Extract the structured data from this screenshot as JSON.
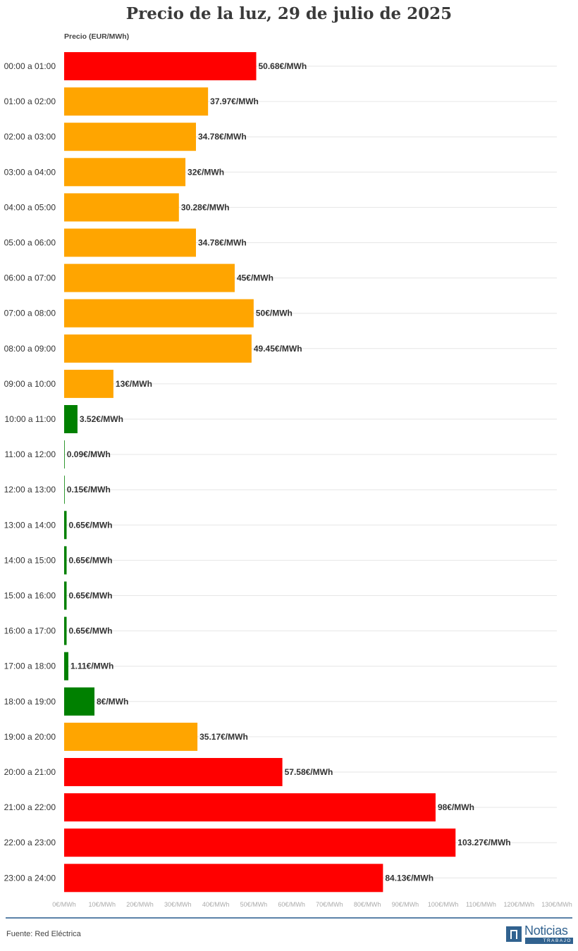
{
  "chart_data": {
    "type": "bar",
    "orientation": "horizontal",
    "title": "Precio de la luz, 29 de julio de 2025",
    "ylabel": "Precio (EUR/MWh)",
    "xlim": [
      0,
      130
    ],
    "x_ticks": [
      "0€/MWh",
      "10€/MWh",
      "20€/MWh",
      "30€/MWh",
      "40€/MWh",
      "50€/MWh",
      "60€/MWh",
      "70€/MWh",
      "80€/MWh",
      "90€/MWh",
      "100€/MWh",
      "110€/MWh",
      "120€/MWh",
      "130€/MWh"
    ],
    "grid": true,
    "colors": {
      "high": "#ff0000",
      "medium": "#ffa500",
      "low": "#008000"
    },
    "categories": [
      "00:00 a 01:00",
      "01:00 a 02:00",
      "02:00 a 03:00",
      "03:00 a 04:00",
      "04:00 a 05:00",
      "05:00 a 06:00",
      "06:00 a 07:00",
      "07:00 a 08:00",
      "08:00 a 09:00",
      "09:00 a 10:00",
      "10:00 a 11:00",
      "11:00 a 12:00",
      "12:00 a 13:00",
      "13:00 a 14:00",
      "14:00 a 15:00",
      "15:00 a 16:00",
      "16:00 a 17:00",
      "17:00 a 18:00",
      "18:00 a 19:00",
      "19:00 a 20:00",
      "20:00 a 21:00",
      "21:00 a 22:00",
      "22:00 a 23:00",
      "23:00 a 24:00"
    ],
    "values": [
      50.68,
      37.97,
      34.78,
      32,
      30.28,
      34.78,
      45,
      50,
      49.45,
      13,
      3.52,
      0.09,
      0.15,
      0.65,
      0.65,
      0.65,
      0.65,
      1.11,
      8,
      35.17,
      57.58,
      98,
      103.27,
      84.13
    ],
    "data_labels": [
      "50.68€/MWh",
      "37.97€/MWh",
      "34.78€/MWh",
      "32€/MWh",
      "30.28€/MWh",
      "34.78€/MWh",
      "45€/MWh",
      "50€/MWh",
      "49.45€/MWh",
      "13€/MWh",
      "3.52€/MWh",
      "0.09€/MWh",
      "0.15€/MWh",
      "0.65€/MWh",
      "0.65€/MWh",
      "0.65€/MWh",
      "0.65€/MWh",
      "1.11€/MWh",
      "8€/MWh",
      "35.17€/MWh",
      "57.58€/MWh",
      "98€/MWh",
      "103.27€/MWh",
      "84.13€/MWh"
    ],
    "levels": [
      "high",
      "medium",
      "medium",
      "medium",
      "medium",
      "medium",
      "medium",
      "medium",
      "medium",
      "medium",
      "low",
      "low",
      "low",
      "low",
      "low",
      "low",
      "low",
      "low",
      "low",
      "medium",
      "high",
      "high",
      "high",
      "high"
    ]
  },
  "footer": {
    "source": "Fuente: Red Eléctrica",
    "logo_name": "Noticias",
    "logo_sub": "TRABAJO"
  }
}
